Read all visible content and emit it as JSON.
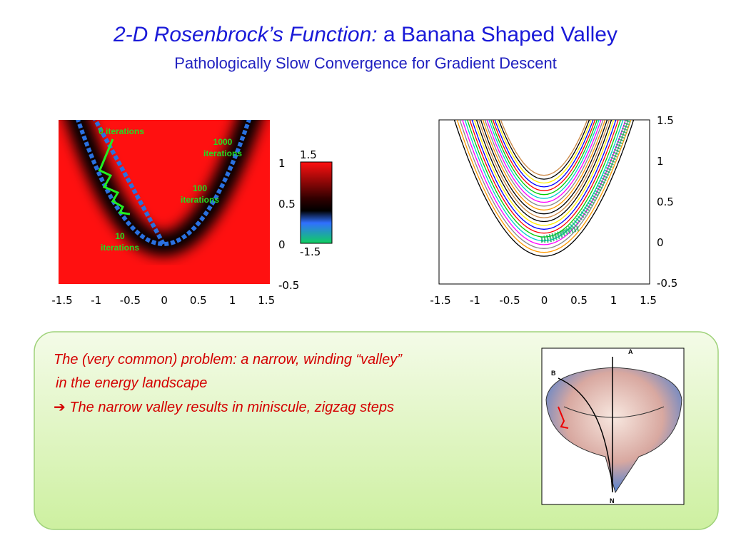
{
  "header": {
    "title_italic": "2-D Rosenbrock’s Function:",
    "title_rest": "a Banana Shaped Valley",
    "subtitle": "Pathologically Slow Convergence for Gradient Descent"
  },
  "left_plot": {
    "x_ticks": [
      "-1.5",
      "-1",
      "-0.5",
      "0",
      "0.5",
      "1",
      "1.5"
    ],
    "y_ticks": [
      "1",
      "0.5",
      "0",
      "-0.5"
    ],
    "colorbar_ticks": [
      "1.5",
      "-1.5"
    ],
    "annotations": [
      {
        "lines": [
          "0 iterations"
        ]
      },
      {
        "lines": [
          "1000",
          "iterations"
        ]
      },
      {
        "lines": [
          "100",
          "iterations"
        ]
      },
      {
        "lines": [
          "10",
          "iterations"
        ]
      }
    ]
  },
  "right_plot": {
    "x_ticks": [
      "-1.5",
      "-1",
      "-0.5",
      "0",
      "0.5",
      "1",
      "1.5"
    ],
    "y_ticks": [
      "1.5",
      "1",
      "0.5",
      "0",
      "-0.5"
    ]
  },
  "text_box": {
    "line1": "The (very common) problem:   a narrow, winding “valley”",
    "line2": "in the energy landscape",
    "arrow": "➔",
    "line3": "The narrow valley results in miniscule, zigzag steps"
  },
  "surface_figure": {
    "labels": [
      "A",
      "B",
      "N"
    ]
  }
}
